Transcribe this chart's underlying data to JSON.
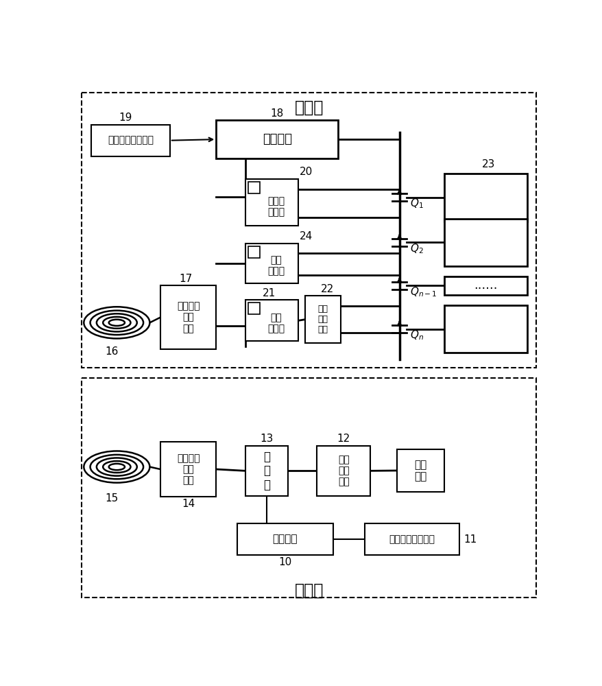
{
  "bg_color": "#ffffff",
  "title_top": "车载端",
  "title_bottom": "车位端",
  "box_19_text": "第一无线收发装置",
  "box_18_text": "从控制器",
  "box_20_text": "测阻抗\n继电器",
  "box_24_text": "加热\n继电器",
  "box_21_text": "充电\n继电器",
  "box_22_text": "第一\n整流\n滤波",
  "box_17_text": "第一拓扑\n补偿\n电路",
  "box_14_text": "第二拓扑\n补偿\n电路",
  "box_13_text": "逆\n变\n器",
  "box_12_text": "第二\n整流\n滤波",
  "box_ext_text": "外部\n电源",
  "box_master_text": "主控制器",
  "box_11_text": "第二无线收发装置",
  "labels": [
    "10",
    "11",
    "12",
    "13",
    "14",
    "15",
    "16",
    "17",
    "18",
    "19",
    "20",
    "21",
    "22",
    "23",
    "24"
  ]
}
